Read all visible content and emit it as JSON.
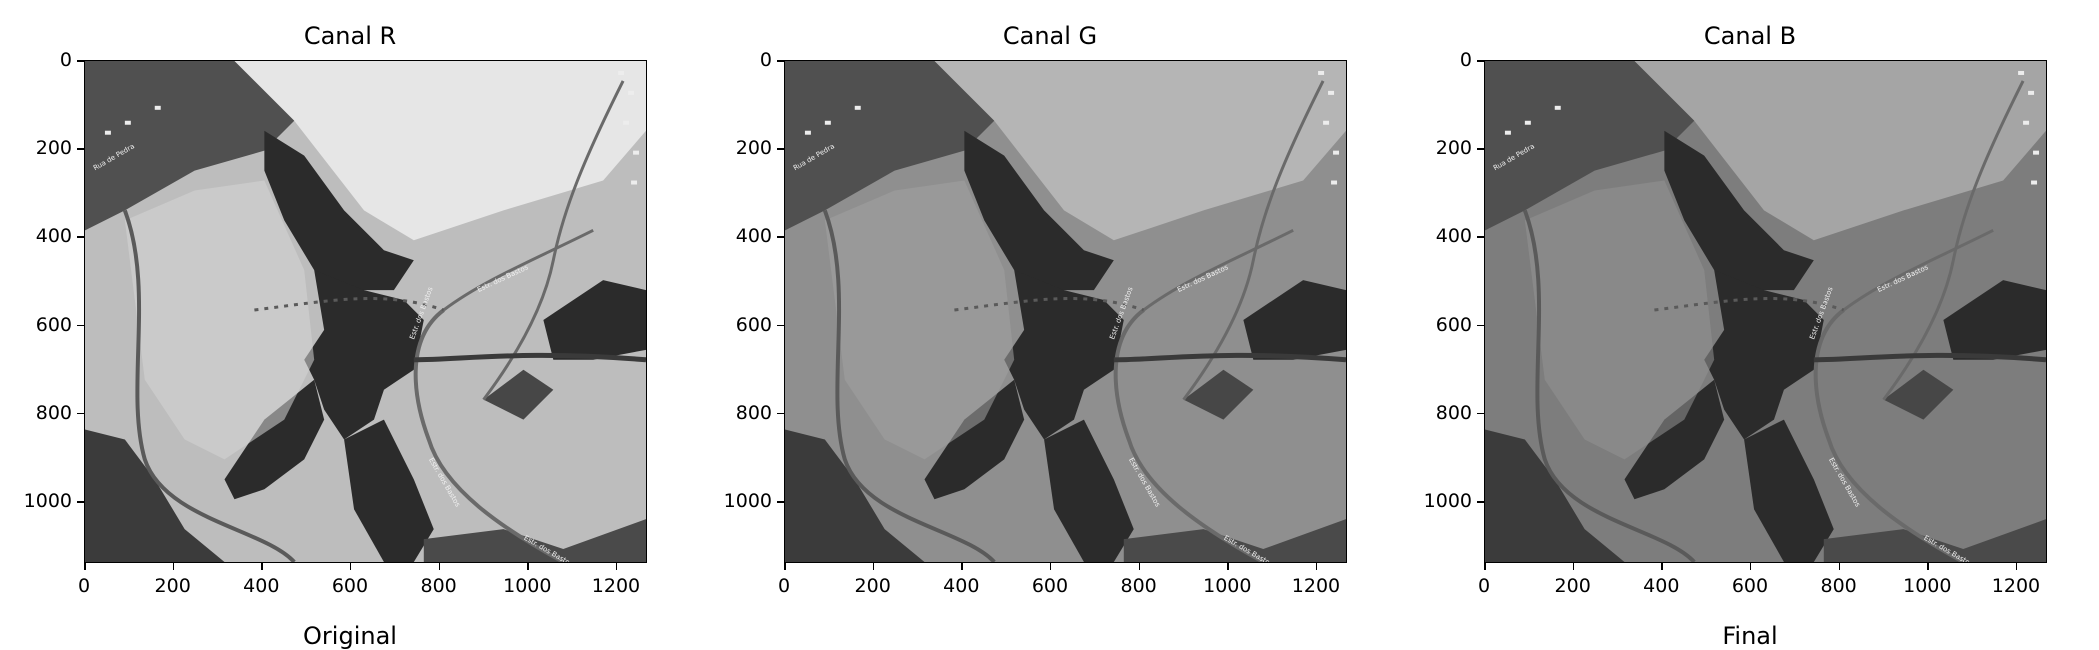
{
  "panels": [
    {
      "title": "Canal R",
      "sublabel": "Original",
      "tone": "r"
    },
    {
      "title": "Canal G",
      "sublabel": "",
      "tone": "g"
    },
    {
      "title": "Canal B",
      "sublabel": "Final",
      "tone": "b"
    }
  ],
  "y_ticks": [
    "0",
    "200",
    "400",
    "600",
    "800",
    "1000"
  ],
  "x_ticks": [
    "0",
    "200",
    "400",
    "600",
    "800",
    "1000",
    "1200"
  ],
  "road_labels": [
    "Estr. dos Bastos",
    "Estr. dos Bastos",
    "Estr. dos Bastos",
    "Estr. dos Bastos",
    "Rua de Pedra"
  ],
  "colors": {
    "r_field": "#bdbdbd",
    "g_field": "#8f8f8f",
    "b_field": "#7d7d7d",
    "forest": "#2b2b2b"
  }
}
